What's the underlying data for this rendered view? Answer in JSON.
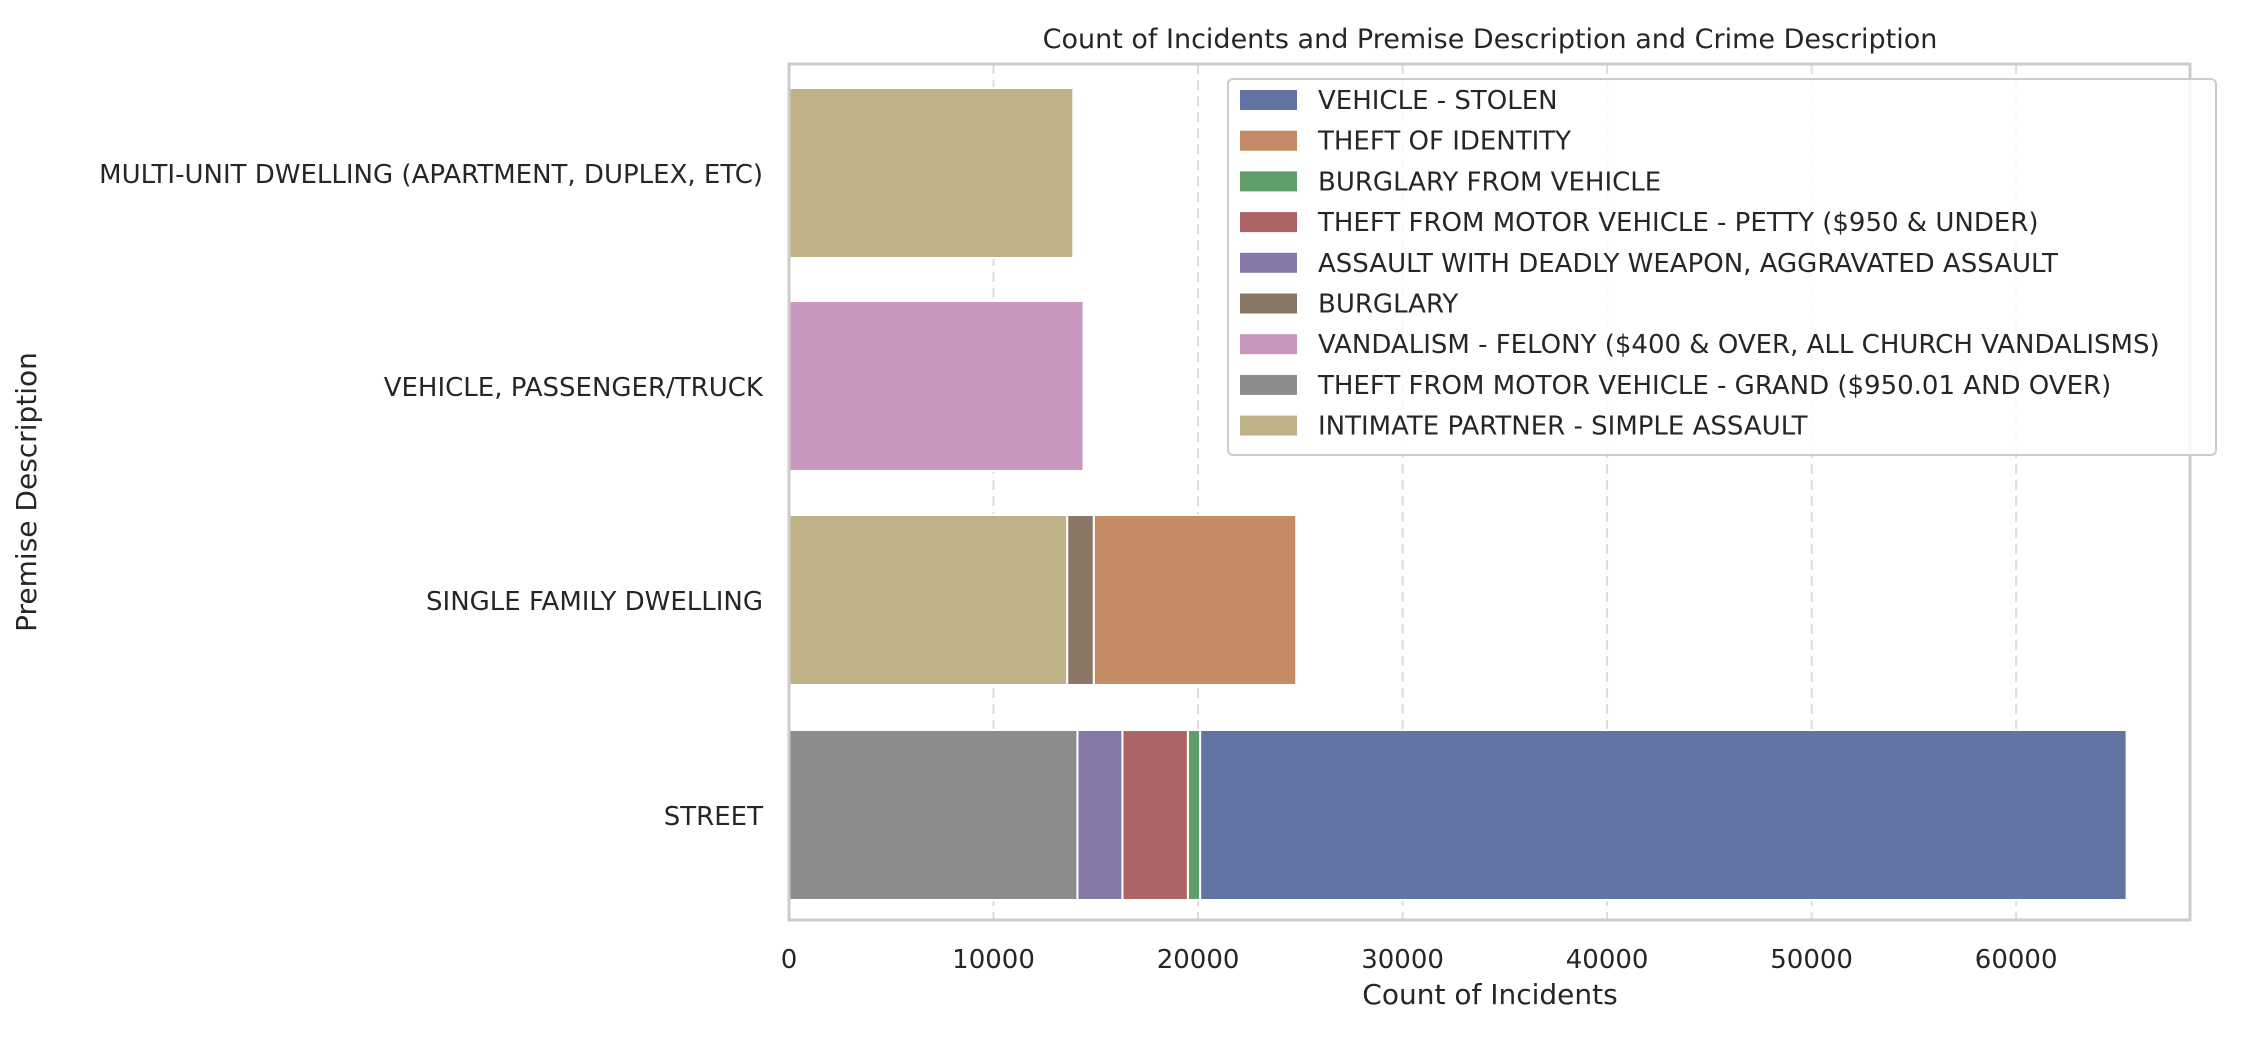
{
  "chart_data": {
    "type": "bar",
    "orientation": "horizontal",
    "stacked": true,
    "title": "Count of Incidents and Premise Description and Crime Description",
    "xlabel": "Count of Incidents",
    "ylabel": "Premise Description",
    "xlim": [
      0,
      68500
    ],
    "xticks": [
      0,
      10000,
      20000,
      30000,
      40000,
      50000,
      60000
    ],
    "xtick_labels": [
      "0",
      "10000",
      "20000",
      "30000",
      "40000",
      "50000",
      "60000"
    ],
    "grid": "vertical dashed",
    "legend_position": "top-right",
    "categories": [
      "MULTI-UNIT DWELLING (APARTMENT, DUPLEX, ETC)",
      "VEHICLE, PASSENGER/TRUCK",
      "SINGLE FAMILY DWELLING",
      "STREET"
    ],
    "series": [
      {
        "name": "VEHICLE - STOLEN",
        "color": "#6274a3",
        "segments": [
          [
            3,
            20100,
            65400
          ]
        ]
      },
      {
        "name": "THEFT OF IDENTITY",
        "color": "#c48b66",
        "segments": [
          [
            2,
            14900,
            24800
          ]
        ]
      },
      {
        "name": "BURGLARY FROM VEHICLE",
        "color": "#5f9e6a",
        "segments": [
          [
            3,
            19500,
            20100
          ]
        ]
      },
      {
        "name": "THEFT FROM MOTOR VEHICLE - PETTY ($950 & UNDER)",
        "color": "#ae6466",
        "segments": [
          [
            3,
            16300,
            19500
          ]
        ]
      },
      {
        "name": "ASSAULT WITH DEADLY WEAPON, AGGRAVATED ASSAULT",
        "color": "#8678a9",
        "segments": [
          [
            3,
            14100,
            16300
          ]
        ]
      },
      {
        "name": "BURGLARY",
        "color": "#8a7766",
        "segments": [
          [
            2,
            13600,
            14900
          ]
        ]
      },
      {
        "name": "VANDALISM - FELONY ($400 & OVER, ALL CHURCH VANDALISMS)",
        "color": "#c996be",
        "segments": [
          [
            1,
            0,
            14400
          ]
        ]
      },
      {
        "name": "THEFT FROM MOTOR VEHICLE - GRAND ($950.01 AND OVER)",
        "color": "#8c8c8c",
        "segments": [
          [
            3,
            0,
            14100
          ]
        ]
      },
      {
        "name": "INTIMATE PARTNER - SIMPLE ASSAULT",
        "color": "#bfb286",
        "segments": [
          [
            0,
            0,
            13900
          ],
          [
            2,
            0,
            13600
          ]
        ]
      }
    ]
  }
}
